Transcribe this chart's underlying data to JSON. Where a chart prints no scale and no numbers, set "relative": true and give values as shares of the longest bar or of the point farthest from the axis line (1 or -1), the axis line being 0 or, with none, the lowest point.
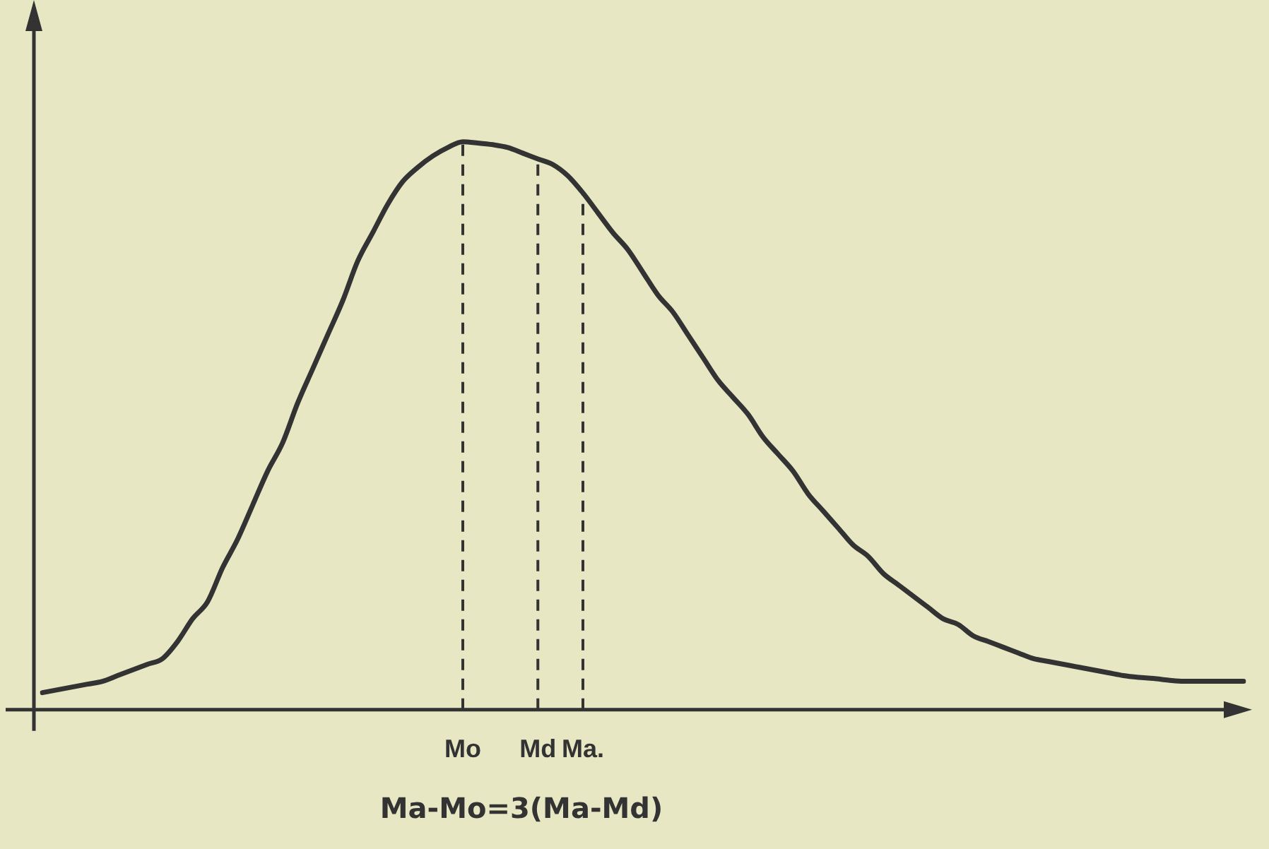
{
  "chart_data": {
    "type": "line",
    "relative": true,
    "grid": false,
    "legend": false,
    "tick_labels": "x",
    "marker": "none",
    "line_style": "solid",
    "categories": [
      null,
      null,
      null,
      null,
      null,
      null,
      null,
      null,
      null,
      null,
      null,
      null,
      null,
      null,
      null,
      null,
      null,
      null,
      null,
      null,
      null,
      null,
      null,
      null,
      null,
      null,
      null,
      null,
      "Mo",
      null,
      null,
      null,
      null,
      "Md",
      null,
      null,
      "Ma.",
      null,
      null,
      null,
      null,
      null,
      null,
      null,
      null,
      null,
      null,
      null,
      null,
      null,
      null,
      null,
      null,
      null,
      null,
      null,
      null,
      null,
      null,
      null,
      null,
      null,
      null,
      null,
      null,
      null,
      null,
      null,
      null,
      null,
      null,
      null,
      null,
      null,
      null,
      null,
      null,
      null,
      null,
      null,
      null
    ],
    "series": [
      {
        "color": "#333333",
        "values": [
          0.03,
          0.035,
          0.04,
          0.045,
          0.05,
          0.06,
          0.07,
          0.08,
          0.09,
          0.12,
          0.16,
          0.19,
          0.25,
          0.3,
          0.36,
          0.42,
          0.47,
          0.54,
          0.6,
          0.66,
          0.72,
          0.79,
          0.84,
          0.89,
          0.93,
          0.955,
          0.975,
          0.99,
          1,
          0.998,
          0.995,
          0.99,
          0.98,
          0.97,
          0.96,
          0.94,
          0.91,
          0.875,
          0.84,
          0.81,
          0.77,
          0.73,
          0.7,
          0.66,
          0.62,
          0.58,
          0.55,
          0.52,
          0.48,
          0.45,
          0.42,
          0.38,
          0.35,
          0.32,
          0.29,
          0.27,
          0.24,
          0.22,
          0.2,
          0.18,
          0.16,
          0.15,
          0.13,
          0.12,
          0.11,
          0.1,
          0.09,
          0.085,
          0.08,
          0.075,
          0.07,
          0.065,
          0.06,
          0.057,
          0.055,
          0.052,
          0.05,
          0.05,
          0.05,
          0.05,
          0.05
        ]
      }
    ],
    "ref_lines": [
      {
        "axis": "x",
        "value": "Mo",
        "line_style": "dashed",
        "color": "#333333"
      },
      {
        "axis": "x",
        "value": "Md",
        "line_style": "dashed",
        "color": "#333333"
      },
      {
        "axis": "x",
        "value": "Ma.",
        "line_style": "dashed",
        "color": "#333333"
      }
    ],
    "annotations": [
      "Ma-Mo=3(Ma-Md)"
    ]
  }
}
